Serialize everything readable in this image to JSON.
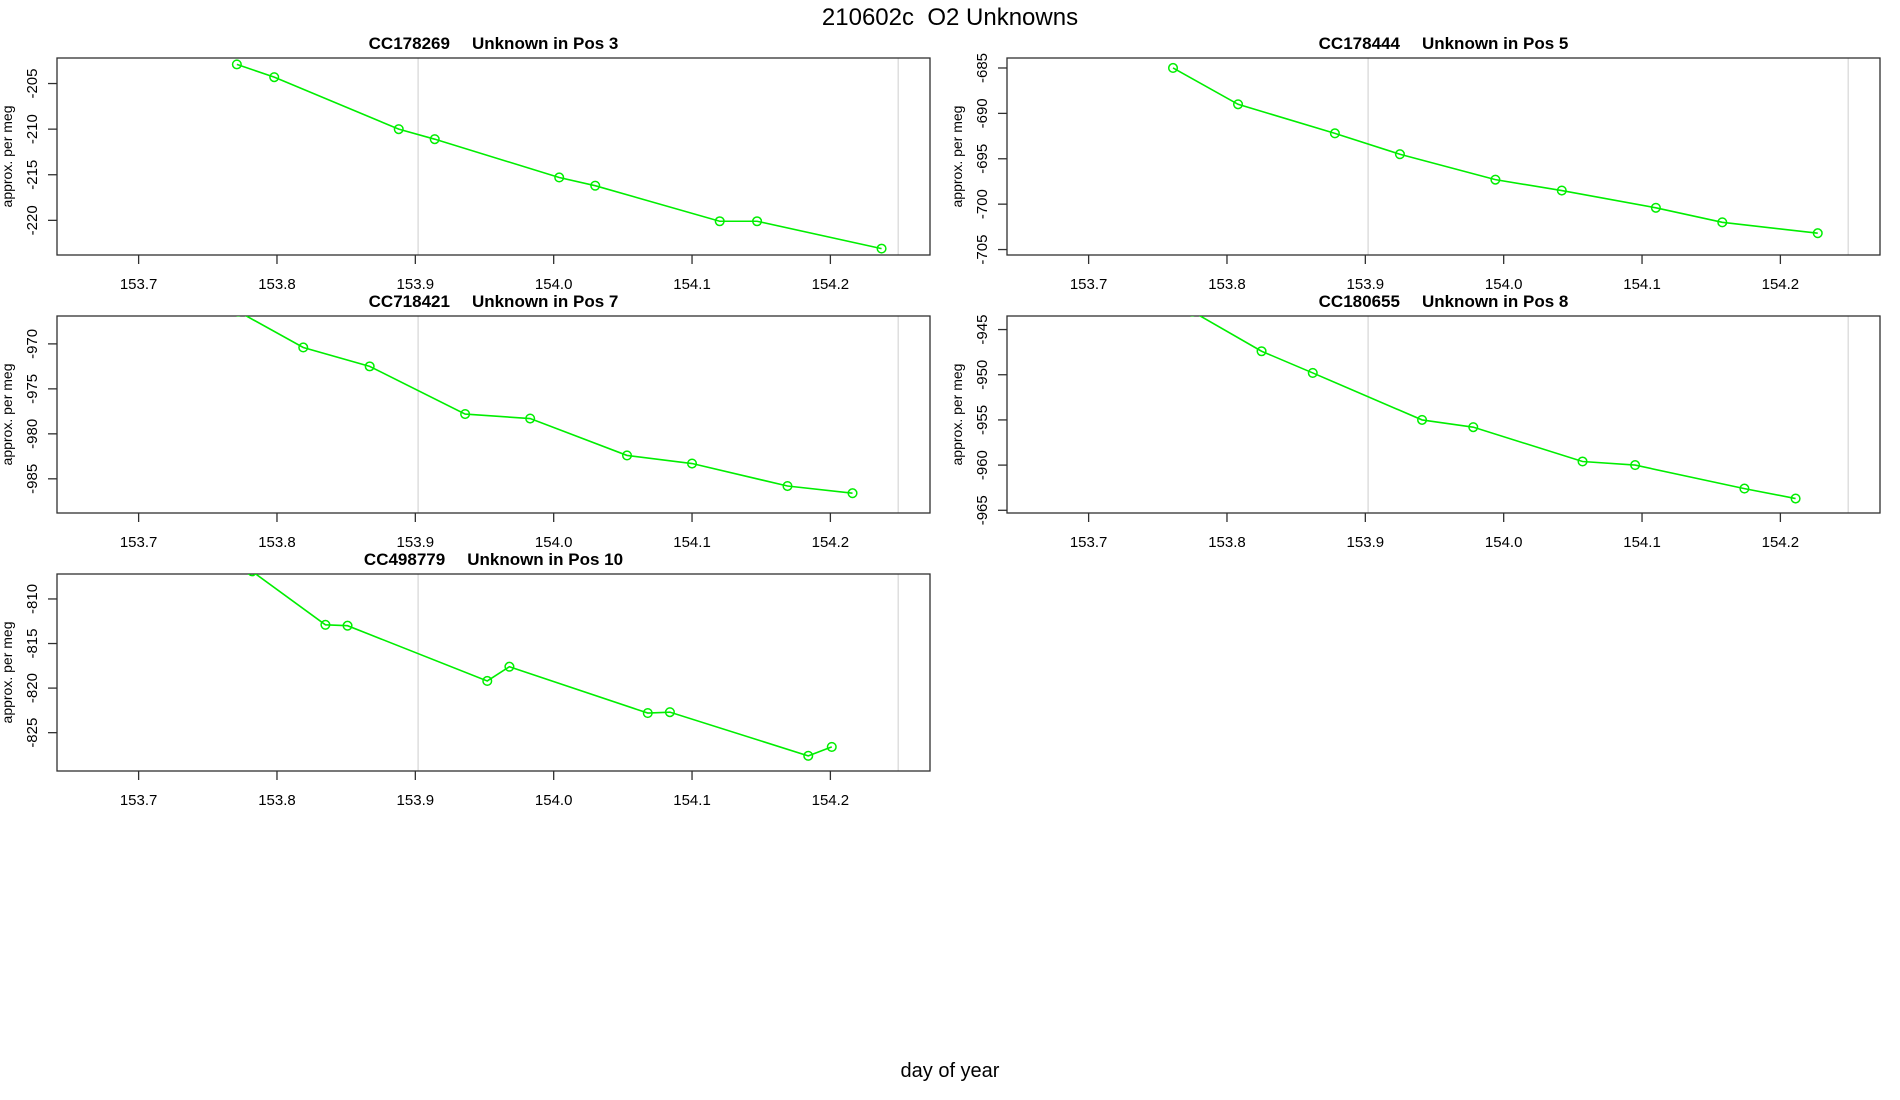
{
  "title": "210602c  O2 Unknowns",
  "xlabel": "day of year",
  "ylabel": "approx. per meg",
  "colors": {
    "series_green": "#00ee00",
    "gridline_gray": "#d6d6d6",
    "axis_black": "#303030",
    "text_black": "#000000"
  },
  "chart_data": {
    "type": "line",
    "xlabel": "day of year",
    "ylabel": "approx. per meg",
    "xlim": [
      153.641,
      154.272
    ],
    "xticks": [
      153.7,
      153.8,
      153.9,
      154.0,
      154.1,
      154.2
    ],
    "grid_x": [
      153.902,
      154.249
    ],
    "marker": "open-circle",
    "legend": "none",
    "grid": "vertical-reference-lines-only",
    "panels": [
      {
        "id": "CC178269",
        "pos": "Unknown in Pos 3",
        "x": [
          153.771,
          153.798,
          153.888,
          153.914,
          154.004,
          154.03,
          154.12,
          154.147,
          154.237
        ],
        "y": [
          -202.9,
          -204.3,
          -210.0,
          -211.1,
          -215.3,
          -216.2,
          -220.1,
          -220.1,
          -223.1
        ],
        "ylim": [
          -223.8,
          -202.2
        ],
        "yticks": [
          -205,
          -210,
          -215,
          -220
        ]
      },
      {
        "id": "CC178444",
        "pos": "Unknown in Pos 5",
        "x": [
          153.761,
          153.808,
          153.878,
          153.925,
          153.994,
          154.042,
          154.11,
          154.158,
          154.227
        ],
        "y": [
          -685.0,
          -689.0,
          -692.2,
          -694.5,
          -697.3,
          -698.5,
          -700.4,
          -702.0,
          -703.2
        ],
        "ylim": [
          -705.6,
          -683.9
        ],
        "yticks": [
          -685,
          -690,
          -695,
          -700,
          -705
        ]
      },
      {
        "id": "CC718421",
        "pos": "Unknown in Pos 7",
        "x": [
          153.772,
          153.819,
          153.867,
          153.936,
          153.983,
          154.053,
          154.1,
          154.169,
          154.216
        ],
        "y": [
          -966.4,
          -970.4,
          -972.5,
          -977.8,
          -978.3,
          -982.4,
          -983.3,
          -985.8,
          -986.6
        ],
        "ylim": [
          -988.8,
          -966.9
        ],
        "yticks": [
          -970,
          -975,
          -980,
          -985
        ]
      },
      {
        "id": "CC180655",
        "pos": "Unknown in Pos 8",
        "x": [
          153.775,
          153.825,
          153.862,
          153.941,
          153.978,
          154.057,
          154.095,
          154.174,
          154.211
        ],
        "y": [
          -943.0,
          -947.4,
          -949.8,
          -955.0,
          -955.8,
          -959.6,
          -960.0,
          -962.6,
          -963.7
        ],
        "ylim": [
          -965.3,
          -943.5
        ],
        "yticks": [
          -945,
          -950,
          -955,
          -960,
          -965
        ]
      },
      {
        "id": "CC498779",
        "pos": "Unknown in Pos 10",
        "x": [
          153.782,
          153.835,
          153.851,
          153.952,
          153.968,
          154.068,
          154.084,
          154.184,
          154.201
        ],
        "y": [
          -806.9,
          -812.9,
          -813.0,
          -819.2,
          -817.6,
          -822.8,
          -822.7,
          -827.6,
          -826.6
        ],
        "ylim": [
          -829.3,
          -807.2
        ],
        "yticks": [
          -810,
          -815,
          -820,
          -825
        ]
      }
    ]
  }
}
